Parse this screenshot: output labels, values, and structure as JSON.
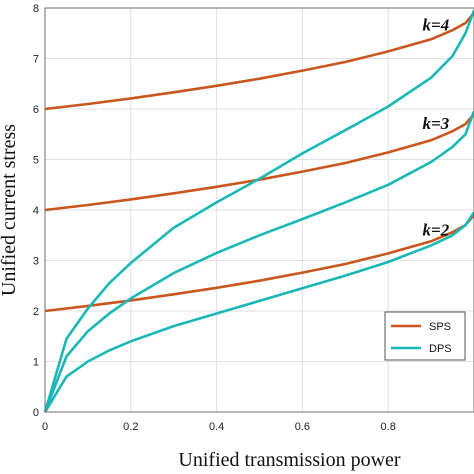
{
  "chart_data": {
    "type": "line",
    "xlabel": "Unified transmission power",
    "ylabel": "Unified current stress",
    "xlim": [
      0,
      1
    ],
    "ylim": [
      0,
      8
    ],
    "x_ticks": [
      0,
      0.2,
      0.4,
      0.6,
      0.8
    ],
    "x_tick_labels": [
      "0",
      "0.2",
      "0.4",
      "0.6",
      "0.8"
    ],
    "y_ticks": [
      0,
      1,
      2,
      3,
      4,
      5,
      6,
      7,
      8
    ],
    "y_tick_labels": [
      "0",
      "1",
      "2",
      "3",
      "4",
      "5",
      "6",
      "7",
      "8"
    ],
    "grid": true,
    "legend_position": "bottom-right",
    "legend": [
      {
        "label": "SPS",
        "color": "#c8561e"
      },
      {
        "label": "DPS",
        "color": "#1ab7b7"
      }
    ],
    "annotations": [
      {
        "text": "k=4",
        "x": 0.88,
        "y": 7.55
      },
      {
        "text": "k=3",
        "x": 0.88,
        "y": 5.6
      },
      {
        "text": "k=2",
        "x": 0.88,
        "y": 3.5
      }
    ],
    "series": [
      {
        "group": "SPS",
        "k": 4,
        "color": "#c8561e",
        "x": [
          0,
          0.1,
          0.2,
          0.3,
          0.4,
          0.5,
          0.6,
          0.7,
          0.8,
          0.9,
          0.95,
          0.98,
          1.0
        ],
        "y": [
          6.0,
          6.1,
          6.21,
          6.33,
          6.46,
          6.6,
          6.76,
          6.93,
          7.14,
          7.38,
          7.56,
          7.7,
          7.9
        ]
      },
      {
        "group": "SPS",
        "k": 3,
        "color": "#c8561e",
        "x": [
          0,
          0.1,
          0.2,
          0.3,
          0.4,
          0.5,
          0.6,
          0.7,
          0.8,
          0.9,
          0.95,
          0.98,
          1.0
        ],
        "y": [
          4.0,
          4.1,
          4.21,
          4.33,
          4.46,
          4.6,
          4.76,
          4.93,
          5.14,
          5.38,
          5.56,
          5.7,
          5.9
        ]
      },
      {
        "group": "SPS",
        "k": 2,
        "color": "#c8561e",
        "x": [
          0,
          0.1,
          0.2,
          0.3,
          0.4,
          0.5,
          0.6,
          0.7,
          0.8,
          0.9,
          0.95,
          0.98,
          1.0
        ],
        "y": [
          2.0,
          2.1,
          2.21,
          2.33,
          2.46,
          2.6,
          2.76,
          2.93,
          3.14,
          3.38,
          3.56,
          3.7,
          3.9
        ]
      },
      {
        "group": "DPS",
        "k": 4,
        "color": "#1ab7b7",
        "x": [
          0,
          0.05,
          0.1,
          0.15,
          0.2,
          0.3,
          0.4,
          0.5,
          0.6,
          0.7,
          0.8,
          0.9,
          0.95,
          0.98,
          1.0
        ],
        "y": [
          0,
          1.45,
          2.05,
          2.55,
          2.95,
          3.65,
          4.15,
          4.62,
          5.12,
          5.58,
          6.05,
          6.62,
          7.05,
          7.5,
          7.95
        ]
      },
      {
        "group": "DPS",
        "k": 3,
        "color": "#1ab7b7",
        "x": [
          0,
          0.05,
          0.1,
          0.15,
          0.2,
          0.3,
          0.4,
          0.5,
          0.6,
          0.7,
          0.8,
          0.9,
          0.95,
          0.98,
          1.0
        ],
        "y": [
          0,
          1.1,
          1.6,
          1.95,
          2.25,
          2.75,
          3.15,
          3.5,
          3.82,
          4.15,
          4.5,
          4.95,
          5.25,
          5.5,
          5.95
        ]
      },
      {
        "group": "DPS",
        "k": 2,
        "color": "#1ab7b7",
        "x": [
          0,
          0.05,
          0.1,
          0.15,
          0.2,
          0.3,
          0.4,
          0.5,
          0.6,
          0.7,
          0.8,
          0.9,
          0.95,
          0.98,
          1.0
        ],
        "y": [
          0,
          0.7,
          1.0,
          1.22,
          1.4,
          1.7,
          1.95,
          2.2,
          2.45,
          2.7,
          2.97,
          3.3,
          3.5,
          3.7,
          3.95
        ]
      }
    ]
  }
}
